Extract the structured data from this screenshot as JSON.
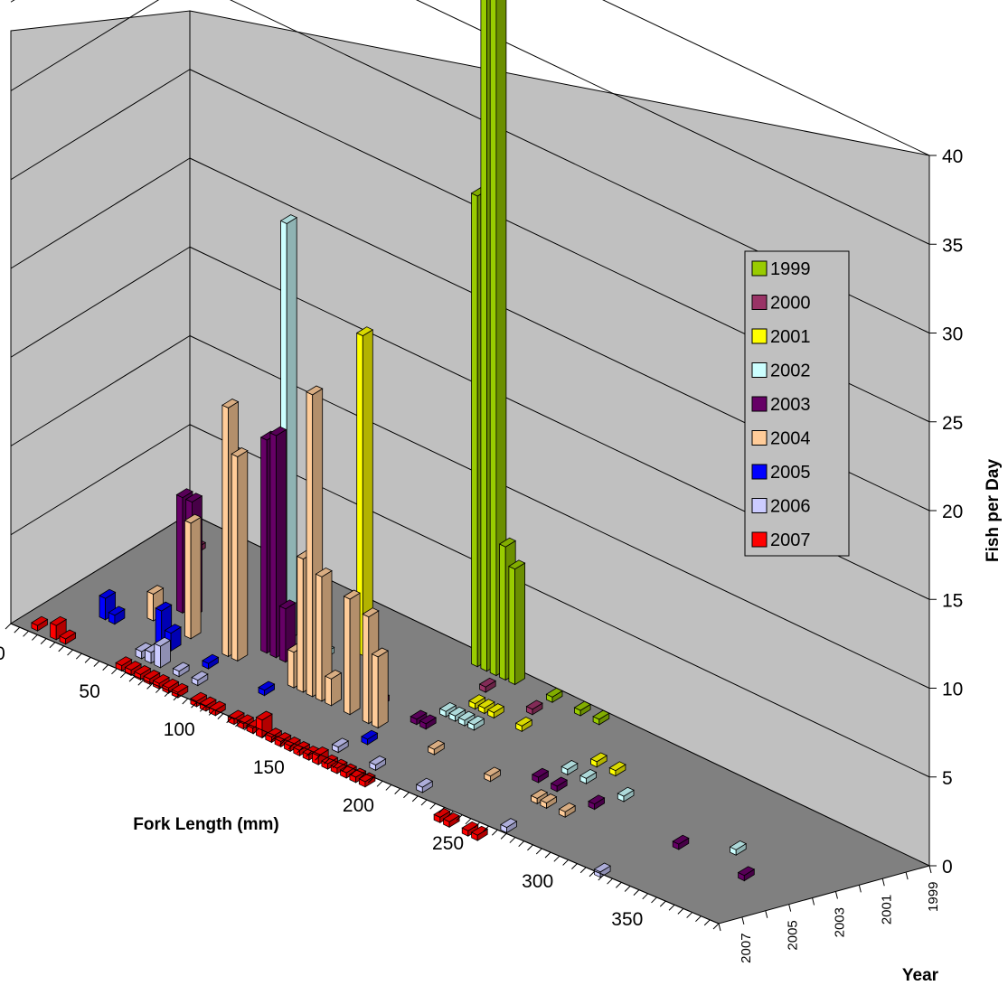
{
  "chart_data": {
    "type": "bar3d",
    "xlabel": "Fork Length (mm)",
    "ylabel": "Year",
    "zlabel": "Fish per Day",
    "x_tick_labels": [
      "0",
      "50",
      "100",
      "150",
      "200",
      "250",
      "300",
      "350"
    ],
    "year_tick_labels": [
      "2007",
      "2005",
      "2003",
      "2001",
      "1999"
    ],
    "z_tick_labels": [
      "0",
      "5",
      "10",
      "15",
      "20",
      "25",
      "30",
      "35",
      "40"
    ],
    "xlim": [
      0,
      395
    ],
    "zlim": [
      0,
      40
    ],
    "grid": true,
    "legend_position": "right",
    "series": [
      {
        "name": "1999",
        "color": "#99cc00",
        "points": [
          [
            160,
            26.5
          ],
          [
            165,
            48
          ],
          [
            170,
            41.5
          ],
          [
            175,
            7.5
          ],
          [
            180,
            6.5
          ],
          [
            200,
            0.3
          ],
          [
            215,
            0.3
          ],
          [
            225,
            0.3
          ]
        ]
      },
      {
        "name": "2000",
        "color": "#993366",
        "points": [
          [
            20,
            0.3
          ],
          [
            175,
            0.3
          ],
          [
            200,
            0.3
          ]
        ]
      },
      {
        "name": "2001",
        "color": "#ffff00",
        "points": [
          [
            120,
            18
          ],
          [
            180,
            0.3
          ],
          [
            185,
            0.3
          ],
          [
            190,
            0.3
          ],
          [
            205,
            0.3
          ],
          [
            245,
            0.3
          ],
          [
            255,
            0.3
          ]
        ]
      },
      {
        "name": "2002",
        "color": "#ccffff",
        "points": [
          [
            90,
            23.5
          ],
          [
            110,
            0.3
          ],
          [
            175,
            0.3
          ],
          [
            180,
            0.3
          ],
          [
            185,
            0.3
          ],
          [
            190,
            0.3
          ],
          [
            240,
            0.3
          ],
          [
            250,
            0.3
          ],
          [
            270,
            0.3
          ],
          [
            330,
            0.3
          ]
        ]
      },
      {
        "name": "2003",
        "color": "#660066",
        "points": [
          [
            45,
            6.5
          ],
          [
            50,
            6.5
          ],
          [
            90,
            12
          ],
          [
            95,
            12.5
          ],
          [
            100,
            3
          ],
          [
            150,
            0.3
          ],
          [
            170,
            0.3
          ],
          [
            175,
            0.3
          ],
          [
            235,
            0.3
          ],
          [
            245,
            0.3
          ],
          [
            265,
            0.3
          ],
          [
            310,
            0.3
          ],
          [
            345,
            0.3
          ]
        ]
      },
      {
        "name": "2004",
        "color": "#ffcc99",
        "points": [
          [
            40,
            1.5
          ],
          [
            60,
            6.5
          ],
          [
            80,
            14
          ],
          [
            85,
            11.5
          ],
          [
            115,
            2
          ],
          [
            120,
            7.5
          ],
          [
            125,
            17
          ],
          [
            130,
            7
          ],
          [
            135,
            1.5
          ],
          [
            145,
            6.5
          ],
          [
            155,
            6
          ],
          [
            160,
            4
          ],
          [
            190,
            0.3
          ],
          [
            220,
            0.3
          ],
          [
            245,
            0.3
          ],
          [
            250,
            0.3
          ],
          [
            260,
            0.3
          ]
        ]
      },
      {
        "name": "2005",
        "color": "#0000ff",
        "points": [
          [
            25,
            1.2
          ],
          [
            30,
            0.5
          ],
          [
            55,
            2
          ],
          [
            60,
            1
          ],
          [
            80,
            0.3
          ],
          [
            110,
            0.3
          ],
          [
            165,
            0.3
          ]
        ]
      },
      {
        "name": "2006",
        "color": "#ccccff",
        "points": [
          [
            55,
            0.4
          ],
          [
            60,
            0.6
          ],
          [
            65,
            1.2
          ],
          [
            75,
            0.3
          ],
          [
            85,
            0.3
          ],
          [
            160,
            0.3
          ],
          [
            180,
            0.3
          ],
          [
            205,
            0.3
          ],
          [
            250,
            0.3
          ],
          [
            300,
            0.3
          ]
        ]
      },
      {
        "name": "2007",
        "color": "#ff0000",
        "points": [
          [
            10,
            0.3
          ],
          [
            20,
            0.8
          ],
          [
            25,
            0.3
          ],
          [
            55,
            0.3
          ],
          [
            60,
            0.3
          ],
          [
            65,
            0.3
          ],
          [
            70,
            0.3
          ],
          [
            75,
            0.3
          ],
          [
            80,
            0.3
          ],
          [
            85,
            0.3
          ],
          [
            95,
            0.3
          ],
          [
            100,
            0.3
          ],
          [
            105,
            0.3
          ],
          [
            115,
            0.3
          ],
          [
            120,
            0.3
          ],
          [
            125,
            0.3
          ],
          [
            130,
            1
          ],
          [
            135,
            0.3
          ],
          [
            140,
            0.3
          ],
          [
            145,
            0.3
          ],
          [
            150,
            0.3
          ],
          [
            155,
            0.3
          ],
          [
            160,
            0.5
          ],
          [
            165,
            0.3
          ],
          [
            170,
            0.3
          ],
          [
            175,
            0.3
          ],
          [
            180,
            0.3
          ],
          [
            185,
            0.3
          ],
          [
            225,
            0.3
          ],
          [
            230,
            0.3
          ],
          [
            240,
            0.3
          ],
          [
            245,
            0.3
          ]
        ]
      }
    ]
  }
}
